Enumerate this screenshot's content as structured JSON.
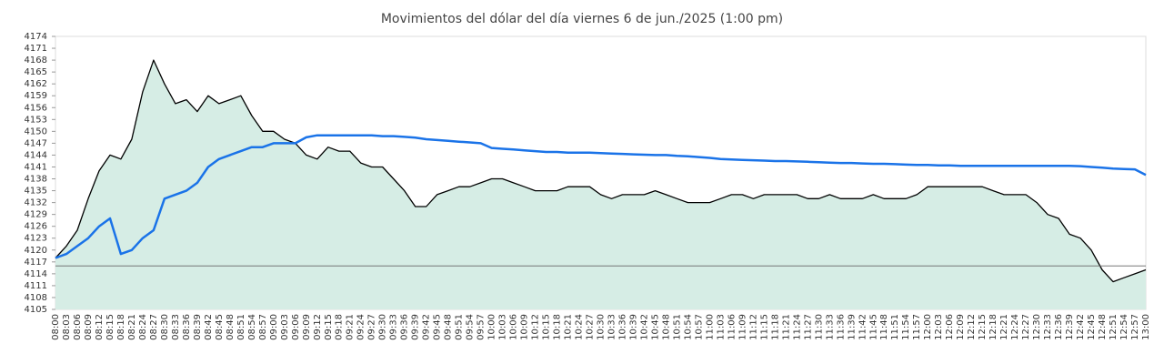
{
  "chart_data": {
    "type": "line",
    "title": "Movimientos del dólar del día viernes 6 de jun./2025 (1:00 pm)",
    "categories": [
      "08:00",
      "08:03",
      "08:06",
      "08:09",
      "08:12",
      "08:15",
      "08:18",
      "08:21",
      "08:24",
      "08:27",
      "08:30",
      "08:33",
      "08:36",
      "08:39",
      "08:42",
      "08:45",
      "08:48",
      "08:51",
      "08:54",
      "08:57",
      "09:00",
      "09:03",
      "09:06",
      "09:09",
      "09:12",
      "09:15",
      "09:18",
      "09:21",
      "09:24",
      "09:27",
      "09:30",
      "09:33",
      "09:36",
      "09:39",
      "09:42",
      "09:45",
      "09:48",
      "09:51",
      "09:54",
      "09:57",
      "10:00",
      "10:03",
      "10:06",
      "10:09",
      "10:12",
      "10:15",
      "10:18",
      "10:21",
      "10:24",
      "10:27",
      "10:30",
      "10:33",
      "10:36",
      "10:39",
      "10:42",
      "10:45",
      "10:48",
      "10:51",
      "10:54",
      "10:57",
      "11:00",
      "11:03",
      "11:06",
      "11:09",
      "11:12",
      "11:15",
      "11:18",
      "11:21",
      "11:24",
      "11:27",
      "11:30",
      "11:33",
      "11:36",
      "11:39",
      "11:42",
      "11:45",
      "11:48",
      "11:51",
      "11:54",
      "11:57",
      "12:00",
      "12:03",
      "12:06",
      "12:09",
      "12:12",
      "12:15",
      "12:18",
      "12:21",
      "12:24",
      "12:27",
      "12:30",
      "12:33",
      "12:36",
      "12:39",
      "12:42",
      "12:45",
      "12:48",
      "12:51",
      "12:54",
      "12:57",
      "13:00"
    ],
    "series": [
      {
        "color": "#000000",
        "fill": "#d6ede5",
        "values": [
          4118,
          4121,
          4125,
          4133,
          4140,
          4144,
          4143,
          4148,
          4160,
          4168,
          4162,
          4157,
          4158,
          4155,
          4159,
          4157,
          4158,
          4159,
          4154,
          4150,
          4150,
          4148,
          4147,
          4144,
          4143,
          4146,
          4145,
          4145,
          4142,
          4141,
          4141,
          4138,
          4135,
          4131,
          4131,
          4134,
          4135,
          4136,
          4136,
          4137,
          4138,
          4138,
          4137,
          4136,
          4135,
          4135,
          4135,
          4136,
          4136,
          4136,
          4134,
          4133,
          4134,
          4134,
          4134,
          4135,
          4134,
          4133,
          4132,
          4132,
          4132,
          4133,
          4134,
          4134,
          4133,
          4134,
          4134,
          4134,
          4134,
          4133,
          4133,
          4134,
          4133,
          4133,
          4133,
          4134,
          4133,
          4133,
          4133,
          4134,
          4136,
          4136,
          4136,
          4136,
          4136,
          4136,
          4135,
          4134,
          4134,
          4134,
          4132,
          4129,
          4128,
          4124,
          4123,
          4120,
          4115,
          4112,
          4113,
          4114,
          4115
        ]
      },
      {
        "color": "#1a73e8",
        "values": [
          4118,
          4119,
          4121,
          4123,
          4126,
          4128,
          4119,
          4120,
          4123,
          4125,
          4133,
          4134,
          4135,
          4137,
          4141,
          4143,
          4144,
          4145,
          4146,
          4146,
          4147,
          4147,
          4147,
          4148.5,
          4149,
          4149,
          4149,
          4149,
          4149,
          4149,
          4148.8,
          4148.8,
          4148.6,
          4148.4,
          4148,
          4147.8,
          4147.6,
          4147.4,
          4147.2,
          4147,
          4145.8,
          4145.6,
          4145.4,
          4145.2,
          4145,
          4144.8,
          4144.8,
          4144.6,
          4144.6,
          4144.6,
          4144.5,
          4144.4,
          4144.3,
          4144.2,
          4144.1,
          4144,
          4144,
          4143.8,
          4143.7,
          4143.5,
          4143.3,
          4143,
          4142.9,
          4142.8,
          4142.7,
          4142.6,
          4142.5,
          4142.5,
          4142.4,
          4142.3,
          4142.2,
          4142.1,
          4142,
          4142,
          4141.9,
          4141.8,
          4141.8,
          4141.7,
          4141.6,
          4141.5,
          4141.5,
          4141.4,
          4141.4,
          4141.3,
          4141.3,
          4141.3,
          4141.3,
          4141.3,
          4141.3,
          4141.3,
          4141.3,
          4141.3,
          4141.3,
          4141.3,
          4141.2,
          4141,
          4140.8,
          4140.6,
          4140.5,
          4140.4,
          4139
        ]
      }
    ],
    "reference_line": 4116,
    "ylim": [
      4105,
      4174
    ],
    "yticks": [
      4105,
      4108,
      4111,
      4114,
      4117,
      4120,
      4123,
      4126,
      4129,
      4132,
      4135,
      4138,
      4141,
      4144,
      4147,
      4150,
      4153,
      4156,
      4159,
      4162,
      4165,
      4168,
      4171,
      4174
    ],
    "grid": false
  }
}
